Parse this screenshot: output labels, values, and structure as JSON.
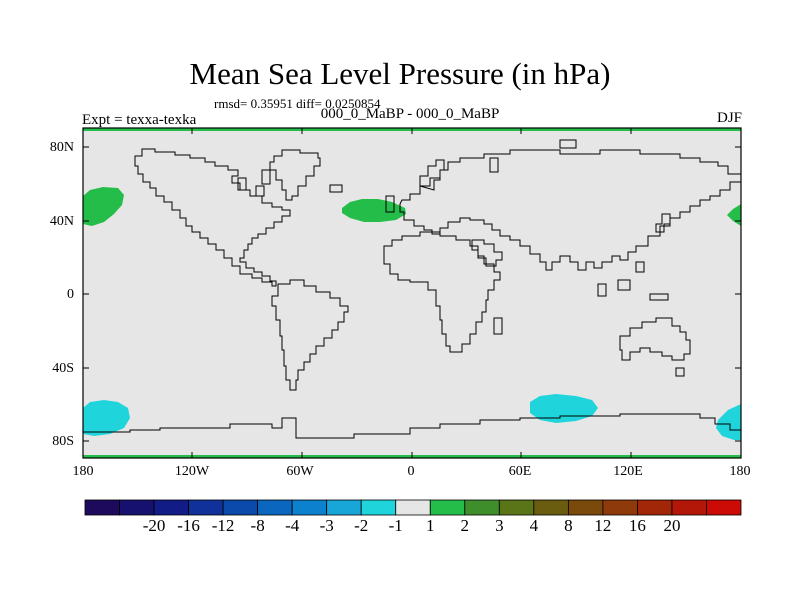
{
  "title": "Mean Sea Level Pressure (in hPa)",
  "stats": "rmsd= 0.35951 diff= 0.0250854",
  "subtitle": "000_0_MaBP - 000_0_MaBP",
  "experiment": "Expt = texxa-texka",
  "season": "DJF",
  "lat_labels": [
    "80N",
    "40N",
    "0",
    "40S",
    "80S"
  ],
  "lon_labels": [
    "180",
    "120W",
    "60W",
    "0",
    "60E",
    "120E",
    "180"
  ],
  "colorbar": {
    "labels": [
      "-20",
      "-16",
      "-12",
      "-8",
      "-4",
      "-3",
      "-2",
      "-1",
      "1",
      "2",
      "3",
      "4",
      "8",
      "12",
      "16",
      "20"
    ],
    "colors": [
      "#1d0a5c",
      "#16106e",
      "#121c86",
      "#10309a",
      "#0b4aaa",
      "#0a66bf",
      "#0c82cf",
      "#18a6d9",
      "#1fd5db",
      "#e6e6e6",
      "#25bd4a",
      "#3e8e2c",
      "#5a7418",
      "#6b5d10",
      "#7a4a0c",
      "#8e3a0a",
      "#a22608",
      "#b31707",
      "#cc0a06"
    ]
  },
  "colors": {
    "ocean": "#e6e6e6",
    "positive_anomaly": "#25bd4a",
    "negative_anomaly": "#1fd5db"
  }
}
